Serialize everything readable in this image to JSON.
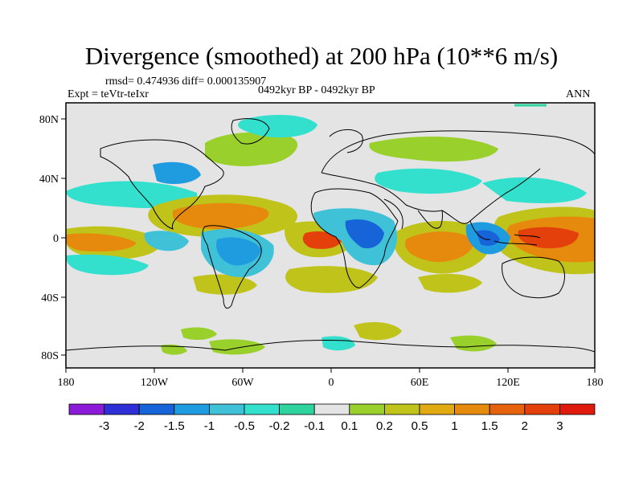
{
  "title": "Divergence (smoothed) at 200 hPa (10**6 m/s)",
  "stats": "rmsd= 0.474936 diff= 0.000135907",
  "experiment": "Expt = teVtr-teIxr",
  "period": "0492kyr BP - 0492kyr BP",
  "season": "ANN",
  "lat_ticks": [
    "80N",
    "40N",
    "0",
    "40S",
    "80S"
  ],
  "lon_ticks": [
    "180",
    "120W",
    "60W",
    "0",
    "60E",
    "120E",
    "180"
  ],
  "colorbar": {
    "labels": [
      "-3",
      "-2",
      "-1.5",
      "-1",
      "-0.5",
      "-0.2",
      "-0.1",
      "0.1",
      "0.2",
      "0.5",
      "1",
      "1.5",
      "2",
      "3"
    ],
    "colors": [
      "#8b1ad9",
      "#2e2fd6",
      "#1763d8",
      "#1f9be0",
      "#3fc1d8",
      "#32e0cd",
      "#2ed39e",
      "#e4e4e4",
      "#9ad02b",
      "#c0c41a",
      "#e0aa10",
      "#e58a0c",
      "#e6620c",
      "#e4400c",
      "#e01a0c"
    ]
  },
  "colors": {
    "background": "#e4e4e4",
    "frame": "#000000"
  }
}
